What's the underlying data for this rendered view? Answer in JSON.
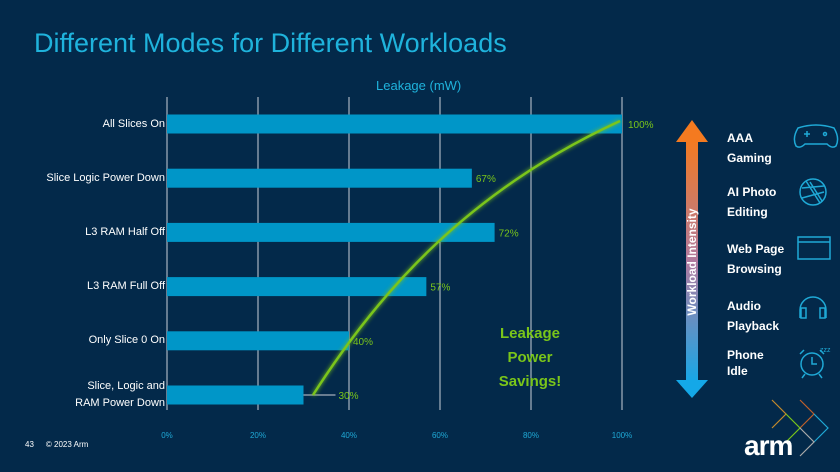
{
  "title": "Different Modes for Different Workloads",
  "chart_data": {
    "type": "bar",
    "orientation": "horizontal",
    "title": "Leakage (mW)",
    "categories": [
      "All Slices On",
      "Slice Logic Power Down",
      "L3 RAM Half Off",
      "L3 RAM Full Off",
      "Only Slice 0 On",
      "Slice, Logic and RAM Power Down"
    ],
    "values": [
      100,
      67,
      72,
      57,
      40,
      30
    ],
    "data_labels": [
      "100%",
      "67%",
      "72%",
      "57%",
      "40%",
      "30%"
    ],
    "xlim": [
      0,
      100
    ],
    "xticks": [
      "0%",
      "20%",
      "40%",
      "60%",
      "80%",
      "100%"
    ],
    "grid": true,
    "bar_color": "#0096c8",
    "curve_color": "#7ac51a",
    "annotation": [
      "Leakage",
      "Power",
      "Savings!"
    ]
  },
  "workload": {
    "axis_label": "Workload Intensity",
    "top_color": "#f47a20",
    "bottom_color": "#14a8e8",
    "items": [
      {
        "line1": "AAA",
        "line2": "Gaming",
        "icon": "gamepad-icon"
      },
      {
        "line1": "AI Photo",
        "line2": "Editing",
        "icon": "camera-aperture-icon"
      },
      {
        "line1": "Web Page",
        "line2": "Browsing",
        "icon": "browser-window-icon"
      },
      {
        "line1": "Audio",
        "line2": "Playback",
        "icon": "headphones-icon"
      },
      {
        "line1": "Phone",
        "line2": "Idle",
        "icon": "alarm-clock-icon"
      }
    ]
  },
  "footer": {
    "page": "43",
    "copyright": "© 2023 Arm"
  },
  "logo": "arm"
}
